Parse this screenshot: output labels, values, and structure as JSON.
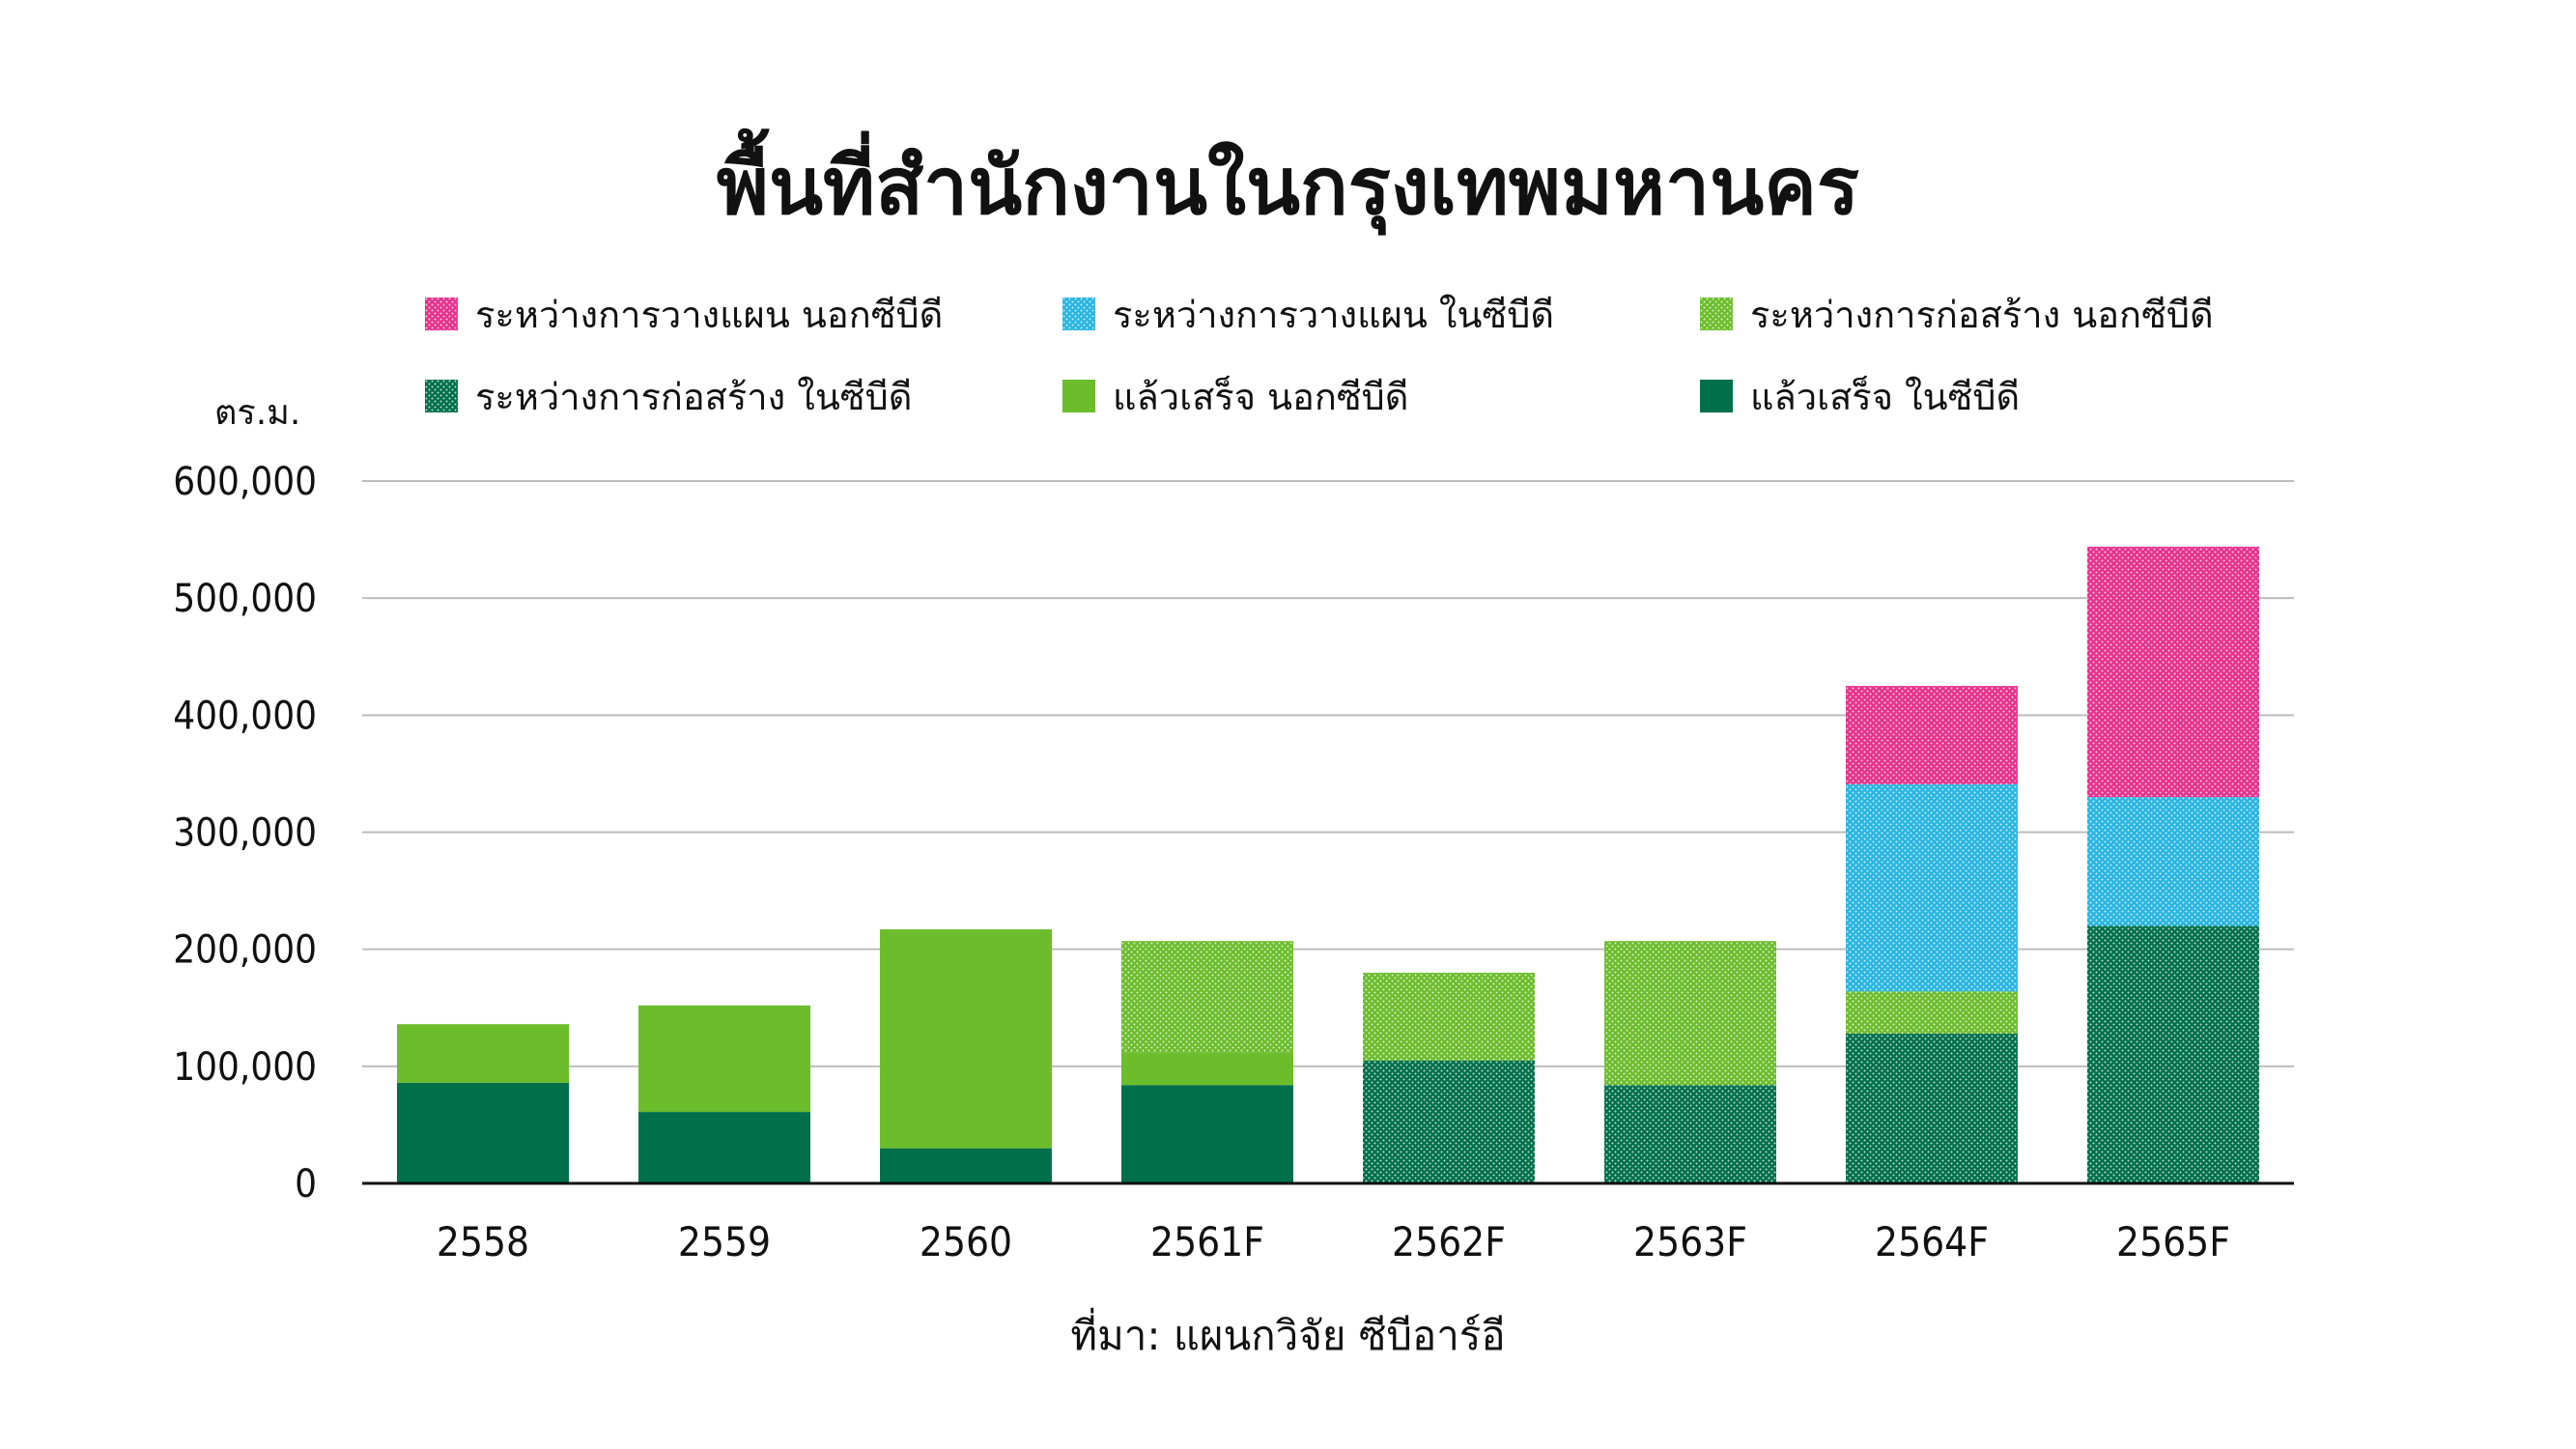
{
  "chart_data": {
    "type": "bar",
    "stacked": true,
    "title": "พื้นที่สำนักงานในกรุงเทพมหานคร",
    "ylabel": "ตร.ม.",
    "source": "ที่มา: แผนกวิจัย ซีบีอาร์อี",
    "categories": [
      "2558",
      "2559",
      "2560",
      "2561F",
      "2562F",
      "2563F",
      "2564F",
      "2565F"
    ],
    "ylim": [
      0,
      600000
    ],
    "yticks": [
      0,
      100000,
      200000,
      300000,
      400000,
      500000,
      600000
    ],
    "ytick_labels": [
      "0",
      "100,000",
      "200,000",
      "300,000",
      "400,000",
      "500,000",
      "600,000"
    ],
    "grid": true,
    "legend_position": "top",
    "series": [
      {
        "name": "แล้วเสร็จ ในซีบีดี",
        "color": "#00704a",
        "pattern": "solid",
        "values": [
          86000,
          61000,
          30000,
          84000,
          0,
          0,
          0,
          0
        ]
      },
      {
        "name": "แล้วเสร็จ นอกซีบีดี",
        "color": "#6cbd2c",
        "pattern": "solid",
        "values": [
          50000,
          91000,
          187000,
          28000,
          0,
          0,
          0,
          0
        ]
      },
      {
        "name": "ระหว่างการก่อสร้าง ในซีบีดี",
        "color": "#00704a",
        "pattern": "dots",
        "values": [
          0,
          0,
          0,
          0,
          105000,
          84000,
          128000,
          220000
        ]
      },
      {
        "name": "ระหว่างการก่อสร้าง นอกซีบีดี",
        "color": "#6cbd2c",
        "pattern": "dots",
        "values": [
          0,
          0,
          0,
          95000,
          75000,
          123000,
          36000,
          0
        ]
      },
      {
        "name": "ระหว่างการวางแผน ในซีบีดี",
        "color": "#29b5e1",
        "pattern": "dots",
        "values": [
          0,
          0,
          0,
          0,
          0,
          0,
          177000,
          110000
        ]
      },
      {
        "name": "ระหว่างการวางแผน นอกซีบีดี",
        "color": "#e6328d",
        "pattern": "dots",
        "values": [
          0,
          0,
          0,
          0,
          0,
          0,
          84000,
          214000
        ]
      }
    ]
  },
  "legend_order": [
    5,
    4,
    3,
    2,
    1,
    0
  ]
}
